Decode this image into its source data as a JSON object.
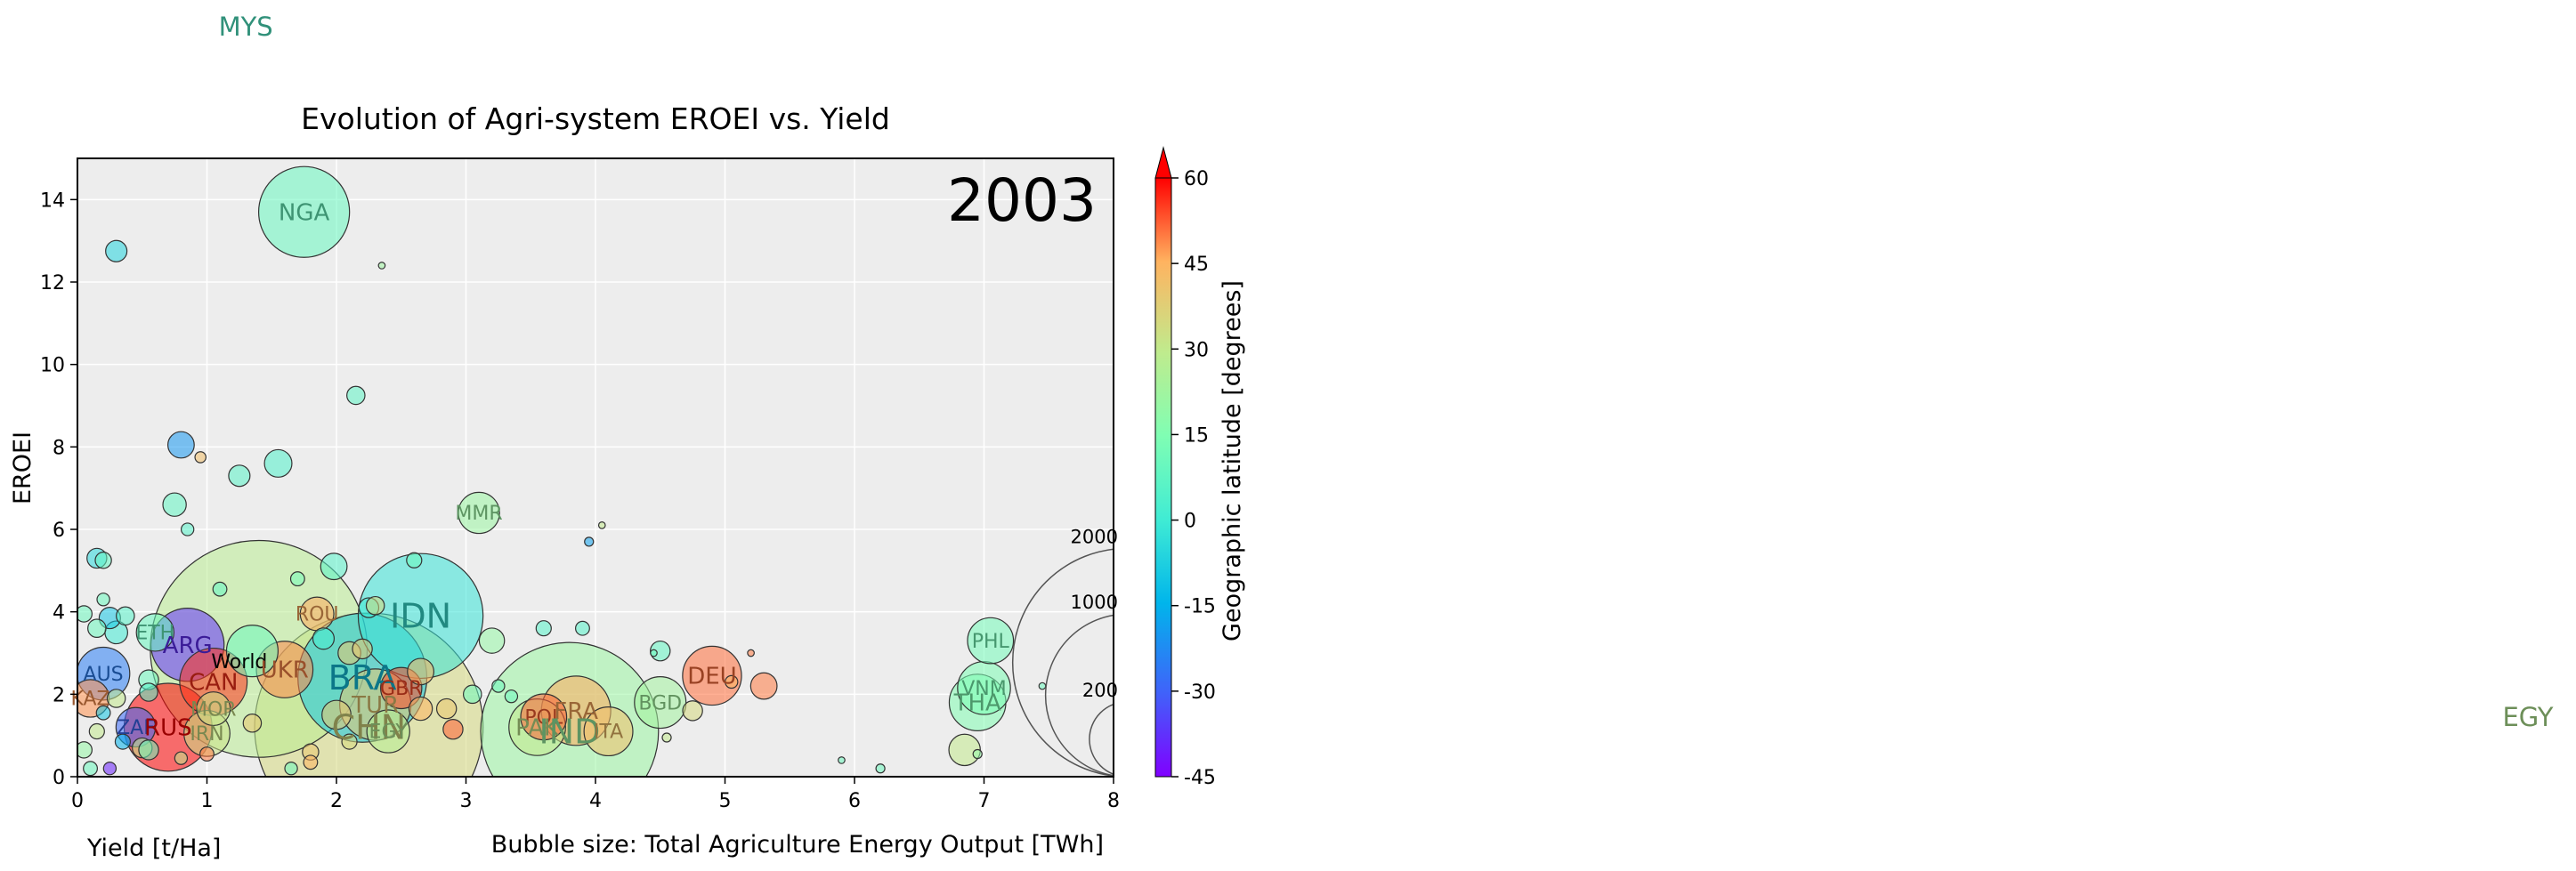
{
  "chart_data": {
    "type": "scatter",
    "title": "Evolution of Agri-system EROEI vs. Yield",
    "xlabel": "Yield [t/Ha]",
    "ylabel": "EROEI",
    "size_label": "Bubble size: Total Agriculture Energy Output [TWh]",
    "colorbar_label": "Geographic latitude [degrees]",
    "year": "2003",
    "xlim": [
      0,
      8
    ],
    "ylim": [
      0,
      15
    ],
    "xticks": [
      0,
      1,
      2,
      3,
      4,
      5,
      6,
      7,
      8
    ],
    "yticks": [
      0,
      2,
      4,
      6,
      8,
      10,
      12,
      14
    ],
    "colorbar_ticks": [
      -45,
      -30,
      -15,
      0,
      15,
      30,
      45,
      60
    ],
    "colorbar_range": [
      -45,
      60
    ],
    "grid": true,
    "outside_labels": [
      {
        "label": "MYS",
        "x": 1.3,
        "y": 18.7,
        "lat": 4
      },
      {
        "label": "EGY",
        "x": 19.4,
        "y": 1.45,
        "lat": 27
      }
    ],
    "size_legend": [
      {
        "label": "2000",
        "value": 2000
      },
      {
        "label": "1000",
        "value": 1000
      },
      {
        "label": "200",
        "value": 200
      }
    ],
    "points": [
      {
        "label": "NGA",
        "x": 1.75,
        "y": 13.7,
        "lat": 9,
        "size": 300
      },
      {
        "label": "",
        "x": 0.3,
        "y": 12.75,
        "lat": -6,
        "size": 12
      },
      {
        "label": "",
        "x": 2.35,
        "y": 12.4,
        "lat": 22,
        "size": 0.3
      },
      {
        "label": "",
        "x": 2.15,
        "y": 9.25,
        "lat": 7,
        "size": 8
      },
      {
        "label": "",
        "x": 0.8,
        "y": 8.05,
        "lat": -20,
        "size": 20
      },
      {
        "label": "",
        "x": 1.55,
        "y": 7.6,
        "lat": 4,
        "size": 22
      },
      {
        "label": "",
        "x": 1.25,
        "y": 7.3,
        "lat": 6,
        "size": 12
      },
      {
        "label": "",
        "x": 0.75,
        "y": 6.6,
        "lat": 8,
        "size": 15
      },
      {
        "label": "",
        "x": 0.95,
        "y": 7.75,
        "lat": 42,
        "size": 2
      },
      {
        "label": "",
        "x": 0.85,
        "y": 6.0,
        "lat": 5,
        "size": 3
      },
      {
        "label": "MMR",
        "x": 3.1,
        "y": 6.4,
        "lat": 21,
        "size": 55
      },
      {
        "label": "",
        "x": 3.95,
        "y": 5.7,
        "lat": -18,
        "size": 1
      },
      {
        "label": "",
        "x": 4.05,
        "y": 6.1,
        "lat": 30,
        "size": 0.3
      },
      {
        "label": "",
        "x": 0.15,
        "y": 5.3,
        "lat": -5,
        "size": 10
      },
      {
        "label": "",
        "x": 0.2,
        "y": 5.25,
        "lat": 8,
        "size": 6
      },
      {
        "label": "",
        "x": 1.98,
        "y": 5.1,
        "lat": 5,
        "size": 20
      },
      {
        "label": "",
        "x": 2.6,
        "y": 5.25,
        "lat": 10,
        "size": 5
      },
      {
        "label": "",
        "x": 1.7,
        "y": 4.8,
        "lat": 12,
        "size": 4
      },
      {
        "label": "",
        "x": 1.1,
        "y": 4.55,
        "lat": 8,
        "size": 4
      },
      {
        "label": "",
        "x": 0.2,
        "y": 4.3,
        "lat": 10,
        "size": 3
      },
      {
        "label": "IDN",
        "x": 2.65,
        "y": 3.9,
        "lat": -2,
        "size": 580
      },
      {
        "label": "ROU",
        "x": 1.85,
        "y": 3.95,
        "lat": 46,
        "size": 35
      },
      {
        "label": "",
        "x": 2.3,
        "y": 4.15,
        "lat": 35,
        "size": 8
      },
      {
        "label": "",
        "x": 2.25,
        "y": 4.1,
        "lat": 0,
        "size": 10
      },
      {
        "label": "",
        "x": 3.2,
        "y": 3.3,
        "lat": 20,
        "size": 18
      },
      {
        "label": "",
        "x": 3.6,
        "y": 3.6,
        "lat": 5,
        "size": 5
      },
      {
        "label": "",
        "x": 3.9,
        "y": 3.6,
        "lat": 5,
        "size": 4
      },
      {
        "label": "",
        "x": 4.5,
        "y": 3.05,
        "lat": 8,
        "size": 10
      },
      {
        "label": "",
        "x": 0.05,
        "y": 3.95,
        "lat": 10,
        "size": 6
      },
      {
        "label": "",
        "x": 0.25,
        "y": 3.85,
        "lat": -10,
        "size": 12
      },
      {
        "label": "",
        "x": 0.37,
        "y": 3.9,
        "lat": 5,
        "size": 8
      },
      {
        "label": "",
        "x": 0.15,
        "y": 3.6,
        "lat": 10,
        "size": 8
      },
      {
        "label": "",
        "x": 0.3,
        "y": 3.5,
        "lat": 0,
        "size": 14
      },
      {
        "label": "ETH",
        "x": 0.6,
        "y": 3.5,
        "lat": 9,
        "size": 45
      },
      {
        "label": "ARG",
        "x": 0.85,
        "y": 3.2,
        "lat": -38,
        "size": 190
      },
      {
        "label": "",
        "x": 1.4,
        "y": 3.1,
        "lat": 28,
        "size": 1800
      },
      {
        "label": "World",
        "x": 1.25,
        "y": 2.8,
        "lat": 30,
        "size": 0
      },
      {
        "label": "",
        "x": 1.35,
        "y": 3.05,
        "lat": 10,
        "size": 90
      },
      {
        "label": "UKR",
        "x": 1.6,
        "y": 2.6,
        "lat": 49,
        "size": 110
      },
      {
        "label": "",
        "x": 1.9,
        "y": 3.35,
        "lat": 2,
        "size": 12
      },
      {
        "label": "BRA",
        "x": 2.2,
        "y": 2.4,
        "lat": -10,
        "size": 620
      },
      {
        "label": "CHN",
        "x": 2.25,
        "y": 1.2,
        "lat": 35,
        "size": 2000
      },
      {
        "label": "",
        "x": 2.1,
        "y": 3.0,
        "lat": 40,
        "size": 14
      },
      {
        "label": "",
        "x": 2.2,
        "y": 3.1,
        "lat": 40,
        "size": 10
      },
      {
        "label": "",
        "x": 2.65,
        "y": 2.55,
        "lat": 45,
        "size": 20
      },
      {
        "label": "GBR",
        "x": 2.5,
        "y": 2.15,
        "lat": 54,
        "size": 55
      },
      {
        "label": "TUR",
        "x": 2.3,
        "y": 1.75,
        "lat": 39,
        "size": 180
      },
      {
        "label": "",
        "x": 2.0,
        "y": 1.5,
        "lat": 40,
        "size": 25
      },
      {
        "label": "",
        "x": 2.65,
        "y": 1.65,
        "lat": 45,
        "size": 15
      },
      {
        "label": "",
        "x": 2.85,
        "y": 1.65,
        "lat": 40,
        "size": 10
      },
      {
        "label": "",
        "x": 2.9,
        "y": 1.15,
        "lat": 52,
        "size": 10
      },
      {
        "label": "",
        "x": 3.05,
        "y": 2.0,
        "lat": 10,
        "size": 8
      },
      {
        "label": "EGY",
        "x": 2.4,
        "y": 1.1,
        "lat": 27,
        "size": 60
      },
      {
        "label": "",
        "x": 2.1,
        "y": 0.85,
        "lat": 35,
        "size": 5
      },
      {
        "label": "",
        "x": 1.8,
        "y": 0.6,
        "lat": 40,
        "size": 6
      },
      {
        "label": "",
        "x": 1.8,
        "y": 0.35,
        "lat": 45,
        "size": 4
      },
      {
        "label": "",
        "x": 1.65,
        "y": 0.2,
        "lat": 10,
        "size": 3
      },
      {
        "label": "AUS",
        "x": 0.2,
        "y": 2.5,
        "lat": -25,
        "size": 95
      },
      {
        "label": "KAZ",
        "x": 0.1,
        "y": 1.9,
        "lat": 48,
        "size": 45
      },
      {
        "label": "CAN",
        "x": 1.05,
        "y": 2.3,
        "lat": 56,
        "size": 160
      },
      {
        "label": "",
        "x": 0.55,
        "y": 2.35,
        "lat": 10,
        "size": 10
      },
      {
        "label": "",
        "x": 0.55,
        "y": 2.05,
        "lat": 5,
        "size": 8
      },
      {
        "label": "",
        "x": 0.3,
        "y": 1.9,
        "lat": 30,
        "size": 8
      },
      {
        "label": "",
        "x": 0.2,
        "y": 1.55,
        "lat": -10,
        "size": 4
      },
      {
        "label": "",
        "x": 0.15,
        "y": 1.1,
        "lat": 30,
        "size": 5
      },
      {
        "label": "MOR",
        "x": 1.05,
        "y": 1.65,
        "lat": 32,
        "size": 35
      },
      {
        "label": "ZAF",
        "x": 0.45,
        "y": 1.2,
        "lat": -29,
        "size": 50
      },
      {
        "label": "RUS",
        "x": 0.7,
        "y": 1.2,
        "lat": 60,
        "size": 280
      },
      {
        "label": "IRN",
        "x": 1.0,
        "y": 1.05,
        "lat": 32,
        "size": 70
      },
      {
        "label": "",
        "x": 1.35,
        "y": 1.3,
        "lat": 40,
        "size": 8
      },
      {
        "label": "",
        "x": 0.5,
        "y": 0.7,
        "lat": 30,
        "size": 10
      },
      {
        "label": "",
        "x": 0.55,
        "y": 0.65,
        "lat": 10,
        "size": 10
      },
      {
        "label": "",
        "x": 0.35,
        "y": 0.85,
        "lat": -15,
        "size": 5
      },
      {
        "label": "",
        "x": 0.05,
        "y": 0.65,
        "lat": 20,
        "size": 6
      },
      {
        "label": "",
        "x": 0.1,
        "y": 0.2,
        "lat": 10,
        "size": 4
      },
      {
        "label": "",
        "x": 0.25,
        "y": 0.2,
        "lat": -40,
        "size": 3
      },
      {
        "label": "",
        "x": 1.0,
        "y": 0.55,
        "lat": 50,
        "size": 4
      },
      {
        "label": "",
        "x": 0.8,
        "y": 0.45,
        "lat": 30,
        "size": 3
      },
      {
        "label": "DEU",
        "x": 4.9,
        "y": 2.45,
        "lat": 51,
        "size": 120
      },
      {
        "label": "",
        "x": 5.3,
        "y": 2.2,
        "lat": 50,
        "size": 20
      },
      {
        "label": "",
        "x": 4.75,
        "y": 1.6,
        "lat": 35,
        "size": 10
      },
      {
        "label": "",
        "x": 5.05,
        "y": 2.3,
        "lat": 45,
        "size": 3
      },
      {
        "label": "",
        "x": 5.2,
        "y": 3.0,
        "lat": 50,
        "size": 0.3
      },
      {
        "label": "BGD",
        "x": 4.5,
        "y": 1.8,
        "lat": 23,
        "size": 90
      },
      {
        "label": "",
        "x": 4.55,
        "y": 0.95,
        "lat": 30,
        "size": 1
      },
      {
        "label": "",
        "x": 4.45,
        "y": 3.0,
        "lat": 10,
        "size": 0.3
      },
      {
        "label": "FRA",
        "x": 3.85,
        "y": 1.6,
        "lat": 46,
        "size": 170
      },
      {
        "label": "POL",
        "x": 3.6,
        "y": 1.45,
        "lat": 52,
        "size": 70
      },
      {
        "label": "PAK",
        "x": 3.55,
        "y": 1.2,
        "lat": 30,
        "size": 110
      },
      {
        "label": "IND",
        "x": 3.8,
        "y": 1.1,
        "lat": 21,
        "size": 1200
      },
      {
        "label": "ITA",
        "x": 4.1,
        "y": 1.1,
        "lat": 42,
        "size": 80
      },
      {
        "label": "",
        "x": 3.35,
        "y": 1.95,
        "lat": 10,
        "size": 3
      },
      {
        "label": "",
        "x": 3.25,
        "y": 2.2,
        "lat": 10,
        "size": 3
      },
      {
        "label": "PHL",
        "x": 7.05,
        "y": 3.3,
        "lat": 12,
        "size": 70
      },
      {
        "label": "VNM",
        "x": 7.0,
        "y": 2.15,
        "lat": 14,
        "size": 95
      },
      {
        "label": "THA",
        "x": 6.95,
        "y": 1.8,
        "lat": 15,
        "size": 110
      },
      {
        "label": "",
        "x": 6.85,
        "y": 0.65,
        "lat": 30,
        "size": 30
      },
      {
        "label": "",
        "x": 6.95,
        "y": 0.55,
        "lat": 20,
        "size": 1
      },
      {
        "label": "",
        "x": 7.45,
        "y": 2.2,
        "lat": 10,
        "size": 0.3
      },
      {
        "label": "",
        "x": 6.2,
        "y": 0.2,
        "lat": 10,
        "size": 1
      },
      {
        "label": "",
        "x": 5.9,
        "y": 0.4,
        "lat": 10,
        "size": 0.3
      }
    ]
  }
}
